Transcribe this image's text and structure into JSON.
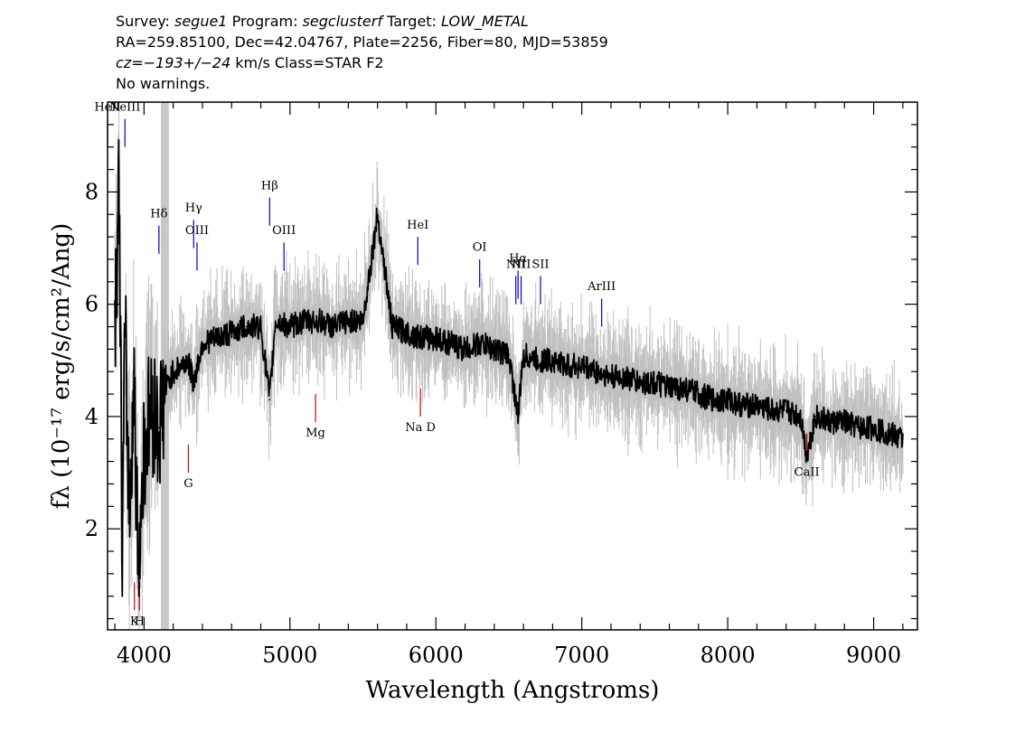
{
  "header": {
    "survey_label": "Survey:",
    "survey": "segue1",
    "program_label": "Program:",
    "program": "segclusterf",
    "target_label": "Target:",
    "target": "LOW_METAL",
    "line2": "RA=259.85100, Dec=42.04767, Plate=2256, Fiber=80, MJD=53859",
    "cz_label": "cz=",
    "cz_value": "−193+/−24",
    "cz_rest": " km/s Class=STAR F2",
    "warnings": "No warnings."
  },
  "chart_data": {
    "type": "line",
    "xlabel": "Wavelength (Angstroms)",
    "ylabel": "fλ (10⁻¹⁷ erg/s/cm²/Ang)",
    "xlim": [
      3750,
      9300
    ],
    "ylim": [
      0.2,
      9.6
    ],
    "x_ticks": [
      4000,
      5000,
      6000,
      7000,
      8000,
      9000
    ],
    "y_ticks": [
      2,
      4,
      6,
      8
    ],
    "masked_region": [
      4115,
      4170
    ],
    "series": [
      {
        "color": "#000000",
        "x": [
          3800,
          3830,
          3850,
          3870,
          3900,
          3930,
          3960,
          4000,
          4050,
          4100,
          4150,
          4200,
          4300,
          4340,
          4400,
          4500,
          4600,
          4700,
          4800,
          4861,
          4900,
          5000,
          5100,
          5200,
          5300,
          5400,
          5500,
          5600,
          5700,
          5800,
          5900,
          6000,
          6100,
          6200,
          6300,
          6400,
          6500,
          6563,
          6600,
          6700,
          6800,
          6900,
          7000,
          7100,
          7200,
          7300,
          7400,
          7500,
          7600,
          7700,
          7800,
          7900,
          8000,
          8100,
          8200,
          8300,
          8400,
          8500,
          8542,
          8600,
          8700,
          8800,
          8900,
          9000,
          9100,
          9200
        ],
        "y": [
          5.8,
          8.2,
          1.5,
          5.5,
          2.2,
          4.8,
          1.2,
          3.5,
          4.2,
          3.8,
          4.5,
          4.8,
          5.0,
          4.6,
          5.3,
          5.4,
          5.5,
          5.6,
          5.6,
          4.3,
          5.7,
          5.6,
          5.7,
          5.7,
          5.6,
          5.7,
          5.7,
          7.6,
          5.6,
          5.5,
          5.4,
          5.4,
          5.3,
          5.2,
          5.3,
          5.2,
          5.1,
          4.0,
          5.1,
          5.0,
          5.0,
          4.9,
          4.9,
          4.8,
          4.7,
          4.7,
          4.6,
          4.6,
          4.5,
          4.5,
          4.4,
          4.3,
          4.3,
          4.2,
          4.2,
          4.1,
          4.1,
          4.0,
          3.3,
          4.0,
          3.9,
          3.9,
          3.8,
          3.8,
          3.7,
          3.6
        ]
      }
    ],
    "emission_lines": [
      {
        "label": "HeII",
        "x": 3750
      },
      {
        "label": "NeIII",
        "x": 3869
      },
      {
        "label": "Hδ",
        "x": 4102
      },
      {
        "label": "Hγ",
        "x": 4340
      },
      {
        "label": "OIII",
        "x": 4363
      },
      {
        "label": "Hβ",
        "x": 4861
      },
      {
        "label": "OIII",
        "x": 4959
      },
      {
        "label": "HeI",
        "x": 5876
      },
      {
        "label": "OI",
        "x": 6300
      },
      {
        "label": "NII",
        "x": 6548
      },
      {
        "label": "Hα",
        "x": 6563
      },
      {
        "label": "NII",
        "x": 6584
      },
      {
        "label": "SII",
        "x": 6717
      },
      {
        "label": "ArIII",
        "x": 7136
      }
    ],
    "absorption_lines": [
      {
        "label": "K",
        "x": 3934
      },
      {
        "label": "H",
        "x": 3969
      },
      {
        "label": "G",
        "x": 4304
      },
      {
        "label": "Mg",
        "x": 5175
      },
      {
        "label": "Na D",
        "x": 5894
      },
      {
        "label": "CaII",
        "x": 8542
      }
    ]
  }
}
